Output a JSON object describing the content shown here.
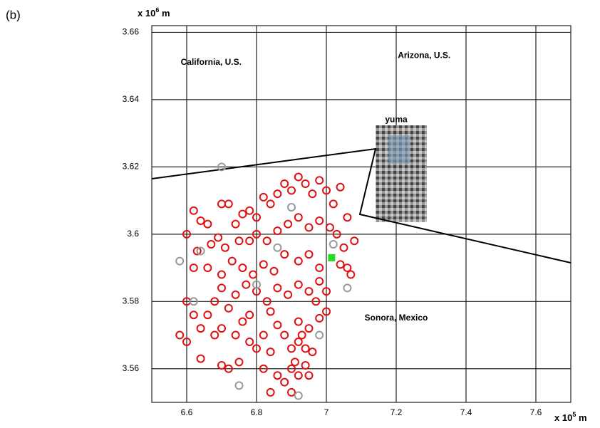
{
  "chart_data": {
    "type": "scatter",
    "panel_label": "(b)",
    "x_unit": {
      "prefix": "x 10",
      "exp": "5",
      "suffix": " m"
    },
    "y_unit": {
      "prefix": "x 10",
      "exp": "6",
      "suffix": " m"
    },
    "annotations": [
      {
        "text": "California, U.S.",
        "x": 6.67,
        "y": 3.651
      },
      {
        "text": "Arizona, U.S.",
        "x": 7.28,
        "y": 3.653
      },
      {
        "text": "Sonora, Mexico",
        "x": 7.2,
        "y": 3.575
      },
      {
        "text": "yuma",
        "x": 7.2,
        "y": 3.634
      }
    ],
    "xlim": [
      6.5,
      7.7
    ],
    "ylim": [
      3.55,
      3.662
    ],
    "xticks": [
      6.6,
      6.8,
      7,
      7.2,
      7.4,
      7.6
    ],
    "yticks": [
      3.56,
      3.58,
      3.6,
      3.62,
      3.64,
      3.66
    ],
    "grid": true,
    "series": [
      {
        "color": "#e01010",
        "marker": "circle",
        "x": [
          6.6,
          6.62,
          6.64,
          6.66,
          6.63,
          6.67,
          6.7,
          6.72,
          6.74,
          6.76,
          6.78,
          6.8,
          6.82,
          6.84,
          6.86,
          6.88,
          6.9,
          6.92,
          6.94,
          6.96,
          6.98,
          7.0,
          7.02,
          7.04,
          7.06,
          6.69,
          6.71,
          6.73,
          6.75,
          6.78,
          6.8,
          6.83,
          6.86,
          6.89,
          6.92,
          6.95,
          6.98,
          7.01,
          7.03,
          7.05,
          7.08,
          7.06,
          7.07,
          7.04,
          6.98,
          6.95,
          6.92,
          6.88,
          6.85,
          6.82,
          6.79,
          6.76,
          6.7,
          6.66,
          6.62,
          6.6,
          6.62,
          6.64,
          6.6,
          6.58,
          6.66,
          6.68,
          6.7,
          6.72,
          6.74,
          6.77,
          6.8,
          6.83,
          6.86,
          6.89,
          6.92,
          6.95,
          6.98,
          7.0,
          6.84,
          6.86,
          6.88,
          6.9,
          6.92,
          6.94,
          6.91,
          6.93,
          6.95,
          6.92,
          6.9,
          6.92,
          6.94,
          6.88,
          6.9,
          6.86,
          6.82,
          6.8,
          6.78,
          6.75,
          6.72,
          6.7,
          6.68,
          6.7,
          6.74,
          6.76,
          6.78,
          6.82,
          6.84,
          6.98,
          6.97,
          7.0,
          6.96,
          6.95,
          6.84,
          6.64
        ],
        "y": [
          3.6,
          3.607,
          3.604,
          3.603,
          3.595,
          3.597,
          3.609,
          3.609,
          3.603,
          3.606,
          3.607,
          3.605,
          3.611,
          3.609,
          3.612,
          3.615,
          3.613,
          3.617,
          3.615,
          3.612,
          3.616,
          3.613,
          3.609,
          3.614,
          3.605,
          3.599,
          3.596,
          3.592,
          3.598,
          3.598,
          3.6,
          3.598,
          3.601,
          3.603,
          3.605,
          3.602,
          3.604,
          3.602,
          3.6,
          3.596,
          3.598,
          3.59,
          3.588,
          3.591,
          3.59,
          3.594,
          3.592,
          3.594,
          3.589,
          3.591,
          3.588,
          3.59,
          3.588,
          3.59,
          3.59,
          3.58,
          3.576,
          3.572,
          3.568,
          3.57,
          3.576,
          3.58,
          3.584,
          3.578,
          3.582,
          3.585,
          3.583,
          3.58,
          3.584,
          3.582,
          3.585,
          3.583,
          3.586,
          3.583,
          3.577,
          3.573,
          3.57,
          3.566,
          3.568,
          3.566,
          3.562,
          3.57,
          3.572,
          3.574,
          3.56,
          3.558,
          3.561,
          3.556,
          3.553,
          3.558,
          3.56,
          3.566,
          3.568,
          3.562,
          3.56,
          3.561,
          3.57,
          3.572,
          3.57,
          3.574,
          3.576,
          3.57,
          3.565,
          3.575,
          3.58,
          3.577,
          3.565,
          3.558,
          3.553,
          3.563
        ]
      },
      {
        "color": "#999999",
        "marker": "circle",
        "x": [
          6.7,
          6.62,
          6.64,
          6.58,
          6.8,
          6.92,
          6.98,
          7.06,
          6.9,
          6.75,
          6.86,
          7.02
        ],
        "y": [
          3.62,
          3.58,
          3.595,
          3.592,
          3.585,
          3.552,
          3.57,
          3.584,
          3.608,
          3.555,
          3.596,
          3.597
        ]
      },
      {
        "color": "#22dd22",
        "marker": "square",
        "x": [
          7.015
        ],
        "y": [
          3.593
        ]
      }
    ]
  }
}
